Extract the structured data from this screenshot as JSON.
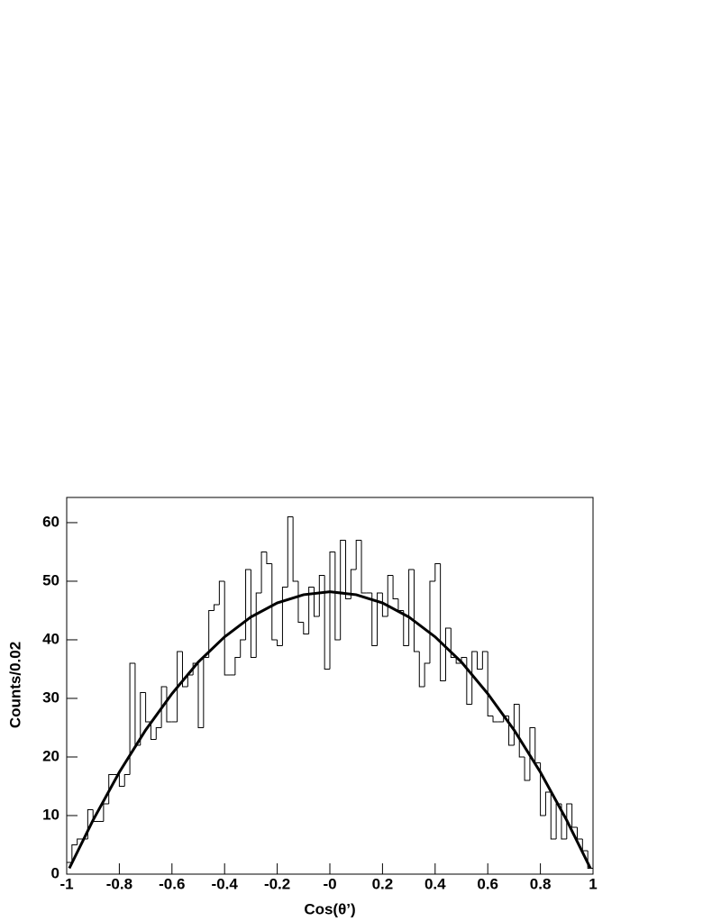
{
  "chart_data": {
    "type": "histogram",
    "x_label": "Cos(θ’)",
    "y_label": "Counts/0.02",
    "bins": [
      -1,
      -0.98,
      -0.96,
      -0.94,
      -0.92,
      -0.9,
      -0.88,
      -0.86,
      -0.84,
      -0.82,
      -0.8,
      -0.78,
      -0.76,
      -0.74,
      -0.72,
      -0.7,
      -0.68,
      -0.66,
      -0.64,
      -0.62,
      -0.6,
      -0.58,
      -0.56,
      -0.54,
      -0.52,
      -0.5,
      -0.48,
      -0.46,
      -0.44,
      -0.42,
      -0.4,
      -0.38,
      -0.36,
      -0.34,
      -0.32,
      -0.3,
      -0.28,
      -0.26,
      -0.24,
      -0.22,
      -0.2,
      -0.18,
      -0.16,
      -0.14,
      -0.12,
      -0.1,
      -0.08,
      -0.06,
      -0.04,
      -0.02,
      0,
      0.02,
      0.04,
      0.06,
      0.08,
      0.1,
      0.12,
      0.14,
      0.16,
      0.18,
      0.2,
      0.22,
      0.24,
      0.26,
      0.28,
      0.3,
      0.32,
      0.34,
      0.36,
      0.38,
      0.4,
      0.42,
      0.44,
      0.46,
      0.48,
      0.5,
      0.52,
      0.54,
      0.56,
      0.58,
      0.6,
      0.62,
      0.64,
      0.66,
      0.68,
      0.7,
      0.72,
      0.74,
      0.76,
      0.78,
      0.8,
      0.82,
      0.84,
      0.86,
      0.88,
      0.9,
      0.92,
      0.94,
      0.96,
      0.98,
      1
    ],
    "values": [
      2,
      5,
      6,
      6,
      11,
      9,
      9,
      12,
      17,
      17,
      15,
      17,
      36,
      22,
      31,
      26,
      23,
      25,
      32,
      26,
      26,
      38,
      32,
      34,
      36,
      25,
      37,
      45,
      46,
      50,
      34,
      34,
      37,
      40,
      52,
      37,
      48,
      55,
      53,
      40,
      39,
      49,
      61,
      50,
      43,
      41,
      49,
      44,
      51,
      35,
      55,
      40,
      57,
      47,
      52,
      57,
      48,
      48,
      39,
      48,
      44,
      51,
      47,
      45,
      39,
      52,
      38,
      32,
      36,
      50,
      53,
      33,
      42,
      37,
      36,
      37,
      29,
      38,
      35,
      38,
      27,
      26,
      26,
      27,
      22,
      29,
      20,
      16,
      25,
      19,
      10,
      14,
      6,
      12,
      6,
      12,
      8,
      6,
      4,
      1
    ],
    "color": "#000000",
    "fit": {
      "x": [
        -0.99,
        -0.9,
        -0.8,
        -0.7,
        -0.6,
        -0.5,
        -0.4,
        -0.3,
        -0.2,
        -0.1,
        0,
        0.1,
        0.2,
        0.3,
        0.4,
        0.5,
        0.6,
        0.7,
        0.8,
        0.9,
        0.99
      ],
      "values": [
        1.0,
        9.2,
        17.4,
        24.6,
        30.8,
        36.2,
        40.5,
        43.9,
        46.3,
        47.7,
        48.2,
        47.7,
        46.3,
        43.9,
        40.5,
        36.2,
        30.8,
        24.6,
        17.4,
        9.2,
        1.0
      ],
      "color": "#000000"
    },
    "xlim": [
      -1,
      1
    ],
    "ylim": [
      0,
      64.3
    ],
    "xticks": [
      -1,
      -0.8,
      -0.6,
      -0.4,
      -0.2,
      {
        "value": 0,
        "label": "-0"
      },
      0.2,
      0.4,
      0.6,
      0.8,
      1
    ],
    "yticks": [
      0,
      10,
      20,
      30,
      40,
      50,
      60
    ]
  }
}
